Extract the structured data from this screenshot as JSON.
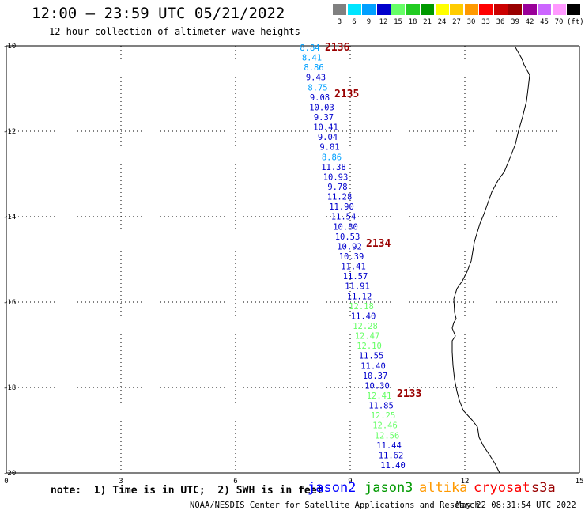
{
  "title": "12:00 – 23:59 UTC 05/21/2022",
  "subtitle": "12 hour collection of altimeter wave heights",
  "legend": {
    "labels": [
      "3",
      "6",
      "9",
      "12",
      "15",
      "18",
      "21",
      "24",
      "27",
      "30",
      "33",
      "36",
      "39",
      "42",
      "45",
      "70",
      "(ft)"
    ],
    "colors": [
      "#808080",
      "#00e5ff",
      "#00a0ff",
      "#0000cc",
      "#66ff66",
      "#22cc22",
      "#009900",
      "#ffff00",
      "#ffcc00",
      "#ff9900",
      "#ff0000",
      "#cc0000",
      "#990000",
      "#990099",
      "#cc66ff",
      "#ff99ff",
      "#000000"
    ]
  },
  "axes": {
    "x_ticks": [
      "0",
      "3",
      "6",
      "9",
      "12",
      "15"
    ],
    "y_ticks": [
      "-10",
      "-12",
      "-14",
      "-16",
      "-18",
      "-20"
    ]
  },
  "note": "note:  1) Time is in UTC;  2) SWH is in feet",
  "satellites": [
    {
      "name": "jason2",
      "color": "#0000ff"
    },
    {
      "name": "jason3",
      "color": "#009900"
    },
    {
      "name": "altika",
      "color": "#ff9900"
    },
    {
      "name": "cryosat",
      "color": "#ff0000"
    },
    {
      "name": "s3a",
      "color": "#990000"
    }
  ],
  "credit": "NOAA/NESDIS Center for Satellite Applications and Research",
  "timestamp": "May 22 08:31:54 UTC 2022",
  "pass_labels": [
    "2136",
    "2135",
    "2134",
    "2133"
  ],
  "observations": [
    {
      "value": "8.84",
      "color": "#00a0ff"
    },
    {
      "value": "8.41",
      "color": "#00a0ff"
    },
    {
      "value": "8.86",
      "color": "#00a0ff"
    },
    {
      "value": "9.43",
      "color": "#0000cc"
    },
    {
      "value": "8.75",
      "color": "#00a0ff"
    },
    {
      "value": "9.08",
      "color": "#0000cc"
    },
    {
      "value": "10.03",
      "color": "#0000cc"
    },
    {
      "value": "9.37",
      "color": "#0000cc"
    },
    {
      "value": "10.41",
      "color": "#0000cc"
    },
    {
      "value": "9.04",
      "color": "#0000cc"
    },
    {
      "value": "9.81",
      "color": "#0000cc"
    },
    {
      "value": "8.86",
      "color": "#00a0ff"
    },
    {
      "value": "11.38",
      "color": "#0000cc"
    },
    {
      "value": "10.93",
      "color": "#0000cc"
    },
    {
      "value": "9.78",
      "color": "#0000cc"
    },
    {
      "value": "11.28",
      "color": "#0000cc"
    },
    {
      "value": "11.90",
      "color": "#0000cc"
    },
    {
      "value": "11.54",
      "color": "#0000cc"
    },
    {
      "value": "10.80",
      "color": "#0000cc"
    },
    {
      "value": "10.53",
      "color": "#0000cc"
    },
    {
      "value": "10.92",
      "color": "#0000cc"
    },
    {
      "value": "10.39",
      "color": "#0000cc"
    },
    {
      "value": "11.41",
      "color": "#0000cc"
    },
    {
      "value": "11.57",
      "color": "#0000cc"
    },
    {
      "value": "11.91",
      "color": "#0000cc"
    },
    {
      "value": "11.12",
      "color": "#0000cc"
    },
    {
      "value": "12.18",
      "color": "#66ff66"
    },
    {
      "value": "11.40",
      "color": "#0000cc"
    },
    {
      "value": "12.28",
      "color": "#66ff66"
    },
    {
      "value": "12.47",
      "color": "#66ff66"
    },
    {
      "value": "12.10",
      "color": "#66ff66"
    },
    {
      "value": "11.55",
      "color": "#0000cc"
    },
    {
      "value": "11.40",
      "color": "#0000cc"
    },
    {
      "value": "10.37",
      "color": "#0000cc"
    },
    {
      "value": "10.30",
      "color": "#0000cc"
    },
    {
      "value": "12.41",
      "color": "#66ff66"
    },
    {
      "value": "11.85",
      "color": "#0000cc"
    },
    {
      "value": "12.25",
      "color": "#66ff66"
    },
    {
      "value": "12.46",
      "color": "#66ff66"
    },
    {
      "value": "12.56",
      "color": "#66ff66"
    },
    {
      "value": "11.44",
      "color": "#0000cc"
    },
    {
      "value": "11.62",
      "color": "#0000cc"
    },
    {
      "value": "11.40",
      "color": "#0000cc"
    }
  ]
}
